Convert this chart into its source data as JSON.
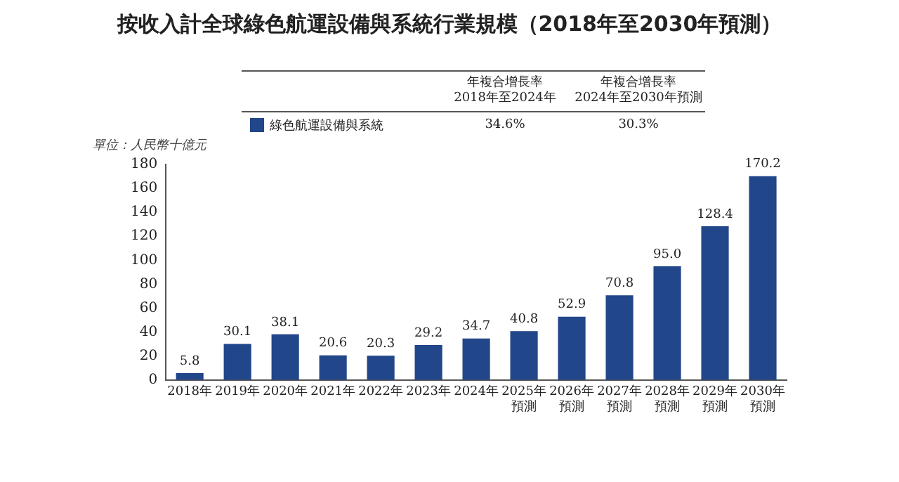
{
  "chart_data": {
    "type": "bar",
    "title": "按收入計全球綠色航運設備與系統行業規模（2018年至2030年預測）",
    "ylabel": "單位：人民幣十億元",
    "categories": [
      "2018年",
      "2019年",
      "2020年",
      "2021年",
      "2022年",
      "2023年",
      "2024年",
      "2025年預測",
      "2026年預測",
      "2027年預測",
      "2028年預測",
      "2029年預測",
      "2030年預測"
    ],
    "series": [
      {
        "name": "綠色航運設備與系統",
        "color": "#22468a",
        "values": [
          5.8,
          30.1,
          38.1,
          20.6,
          20.3,
          29.2,
          34.7,
          40.8,
          52.9,
          70.8,
          95.0,
          128.4,
          170.2
        ]
      }
    ],
    "value_labels": [
      "5.8",
      "30.1",
      "38.1",
      "20.6",
      "20.3",
      "29.2",
      "34.7",
      "40.8",
      "52.9",
      "70.8",
      "95.0",
      "128.4",
      "170.2"
    ],
    "annotations": [
      "年複合增長率\n2018年至2024年",
      "年複合增長率\n2024年至2030年預測",
      "34.6%",
      "30.3%"
    ],
    "ylim": [
      0,
      180
    ],
    "yticks": [
      0,
      20,
      40,
      60,
      80,
      100,
      120,
      140,
      160,
      180
    ],
    "grid": false,
    "legend": "top"
  }
}
